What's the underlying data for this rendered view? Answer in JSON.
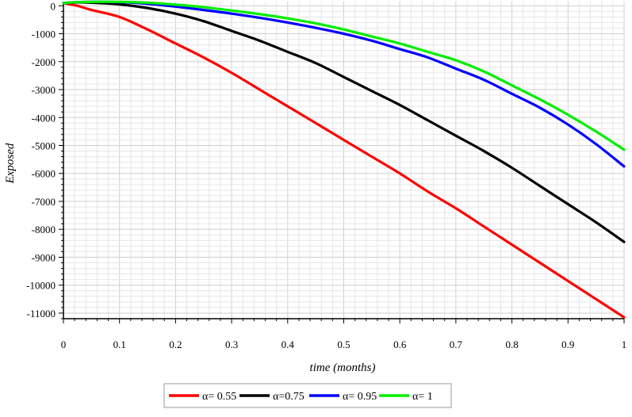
{
  "chart_data": {
    "type": "line",
    "title": "",
    "xlabel": "time (months)",
    "ylabel": "Exposed",
    "xlim": [
      0,
      1
    ],
    "ylim": [
      -11200,
      150
    ],
    "grid": true,
    "legend_position": "bottom-center",
    "x_ticks": [
      "0",
      "0.1",
      "0.2",
      "0.3",
      "0.4",
      "0.5",
      "0.6",
      "0.7",
      "0.8",
      "0.9",
      "1"
    ],
    "y_ticks": [
      "0",
      "-1000",
      "-2000",
      "-3000",
      "-4000",
      "-5000",
      "-6000",
      "-7000",
      "-8000",
      "-9000",
      "-10000",
      "-11000"
    ],
    "x": [
      0,
      0.025,
      0.05,
      0.1,
      0.15,
      0.2,
      0.25,
      0.3,
      0.35,
      0.4,
      0.45,
      0.5,
      0.55,
      0.6,
      0.65,
      0.7,
      0.75,
      0.8,
      0.85,
      0.9,
      0.95,
      1
    ],
    "series": [
      {
        "name": "α= 0.55",
        "color": "#ff0000",
        "values": [
          100,
          0,
          -150,
          -400,
          -850,
          -1350,
          -1850,
          -2400,
          -3000,
          -3600,
          -4200,
          -4800,
          -5400,
          -6000,
          -6650,
          -7250,
          -7900,
          -8550,
          -9200,
          -9850,
          -10500,
          -11150
        ]
      },
      {
        "name": "α=0.75",
        "color": "#000000",
        "values": [
          100,
          120,
          110,
          50,
          -80,
          -280,
          -550,
          -900,
          -1250,
          -1650,
          -2050,
          -2550,
          -3050,
          -3550,
          -4100,
          -4650,
          -5200,
          -5800,
          -6450,
          -7100,
          -7750,
          -8450
        ]
      },
      {
        "name": "α= 0.95",
        "color": "#0000ff",
        "values": [
          100,
          130,
          140,
          130,
          70,
          -30,
          -150,
          -280,
          -430,
          -600,
          -790,
          -1000,
          -1250,
          -1550,
          -1850,
          -2250,
          -2650,
          -3150,
          -3650,
          -4250,
          -4950,
          -5750
        ]
      },
      {
        "name": "α= 1",
        "color": "#00ee00",
        "values": [
          100,
          130,
          140,
          140,
          110,
          40,
          -50,
          -170,
          -300,
          -450,
          -630,
          -850,
          -1100,
          -1350,
          -1650,
          -1950,
          -2350,
          -2850,
          -3350,
          -3900,
          -4500,
          -5150
        ]
      }
    ]
  }
}
